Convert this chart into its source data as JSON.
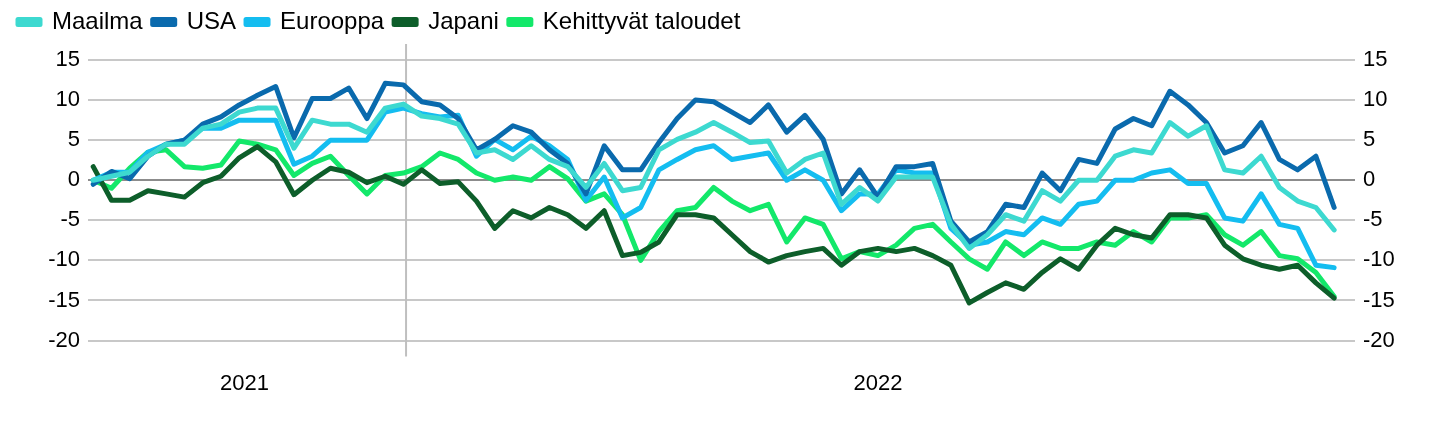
{
  "chart_data": {
    "type": "line",
    "x": [
      "2021-09-03",
      "2021-09-10",
      "2021-09-17",
      "2021-09-24",
      "2021-10-01",
      "2021-10-08",
      "2021-10-15",
      "2021-10-22",
      "2021-10-29",
      "2021-11-05",
      "2021-11-12",
      "2021-11-19",
      "2021-11-26",
      "2021-12-03",
      "2021-12-10",
      "2021-12-17",
      "2021-12-24",
      "2021-12-31",
      "2022-01-07",
      "2022-01-14",
      "2022-01-21",
      "2022-01-28",
      "2022-02-04",
      "2022-02-11",
      "2022-02-18",
      "2022-02-25",
      "2022-03-04",
      "2022-03-11",
      "2022-03-18",
      "2022-03-25",
      "2022-04-01",
      "2022-04-08",
      "2022-04-15",
      "2022-04-22",
      "2022-04-29",
      "2022-05-06",
      "2022-05-13",
      "2022-05-20",
      "2022-05-27",
      "2022-06-03",
      "2022-06-10",
      "2022-06-17",
      "2022-06-24",
      "2022-07-01",
      "2022-07-08",
      "2022-07-15",
      "2022-07-22",
      "2022-07-29",
      "2022-08-05",
      "2022-08-12",
      "2022-08-19",
      "2022-08-26",
      "2022-09-02",
      "2022-09-09",
      "2022-09-16",
      "2022-09-23",
      "2022-09-30",
      "2022-10-07",
      "2022-10-14",
      "2022-10-21",
      "2022-10-28",
      "2022-11-04",
      "2022-11-11",
      "2022-11-18",
      "2022-11-25",
      "2022-12-02",
      "2022-12-09",
      "2022-12-16",
      "2022-12-23"
    ],
    "series": [
      {
        "name": "Maailma",
        "color": "#3dd9d0",
        "values": [
          0,
          0.5,
          1,
          3,
          4.5,
          4.5,
          6.5,
          7,
          8.5,
          9,
          9,
          4,
          7.5,
          7,
          7,
          6,
          9,
          9.5,
          8,
          7.7,
          7,
          3.4,
          3.8,
          2.6,
          4.3,
          2.6,
          1.7,
          -0.9,
          2.1,
          -1.3,
          -0.9,
          3.8,
          5.1,
          6,
          7.2,
          6,
          4.7,
          4.9,
          0.9,
          2.6,
          3.4,
          -3,
          -0.9,
          -2.6,
          0.4,
          0.4,
          0.4,
          -5.5,
          -8.5,
          -6.8,
          -4.3,
          -5.1,
          -1.3,
          -2.6,
          0,
          0,
          3,
          3.8,
          3.4,
          7.2,
          5.5,
          6.8,
          1.3,
          0.9,
          3,
          -0.9,
          -2.6,
          -3.4,
          -6.2
        ]
      },
      {
        "name": "USA",
        "color": "#0a6aad",
        "values": [
          -0.5,
          1.1,
          0.2,
          3,
          4.5,
          5,
          7,
          7.9,
          9.4,
          10.6,
          11.7,
          5.3,
          10.2,
          10.2,
          11.5,
          7.7,
          12.1,
          11.9,
          9.8,
          9.4,
          7.7,
          3.8,
          5.1,
          6.8,
          6,
          3.8,
          2.1,
          -1.7,
          4.3,
          1.3,
          1.3,
          4.7,
          7.7,
          10,
          9.8,
          8.5,
          7.2,
          9.4,
          6,
          8.1,
          5.1,
          -1.7,
          1.3,
          -2.1,
          1.7,
          1.7,
          2.1,
          -5.1,
          -7.7,
          -6.4,
          -3,
          -3.4,
          0.9,
          -1.3,
          2.6,
          2.1,
          6.4,
          7.7,
          6.8,
          11.1,
          9.4,
          7.2,
          3.4,
          4.3,
          7.2,
          2.6,
          1.3,
          3,
          -3.4
        ]
      },
      {
        "name": "Eurooppa",
        "color": "#14bdf0",
        "values": [
          0,
          1,
          1,
          3.5,
          4.5,
          5,
          6.5,
          6.5,
          7.5,
          7.5,
          7.5,
          2,
          3,
          5,
          5,
          5,
          8.5,
          9,
          8.3,
          7.9,
          8.1,
          3,
          5.1,
          3.8,
          5.5,
          4.3,
          2.6,
          -2.5,
          0.4,
          -4.7,
          -3.4,
          1.3,
          2.6,
          3.8,
          4.3,
          2.6,
          3,
          3.4,
          0,
          1.3,
          0,
          -3.8,
          -1.7,
          -1.7,
          1.3,
          0.9,
          0.9,
          -6,
          -8.1,
          -7.7,
          -6.4,
          -6.8,
          -4.7,
          -5.5,
          -3,
          -2.6,
          0,
          0,
          0.9,
          1.3,
          -0.4,
          -0.4,
          -4.7,
          -5.1,
          -1.7,
          -5.5,
          -6,
          -10.6,
          -10.9
        ]
      },
      {
        "name": "Japani",
        "color": "#0d5e2a",
        "values": [
          1.7,
          -2.5,
          -2.5,
          -1.3,
          -1.7,
          -2.1,
          -0.3,
          0.5,
          2.8,
          4.2,
          2.3,
          -1.8,
          0,
          1.5,
          1,
          -0.3,
          0.5,
          -0.5,
          1.3,
          -0.4,
          -0.2,
          -2.6,
          -6,
          -3.8,
          -4.7,
          -3.4,
          -4.3,
          -6,
          -3.8,
          -9.4,
          -9,
          -7.7,
          -4.3,
          -4.3,
          -4.7,
          -6.8,
          -8.9,
          -10.2,
          -9.4,
          -8.9,
          -8.5,
          -10.6,
          -8.9,
          -8.5,
          -8.9,
          -8.5,
          -9.4,
          -10.6,
          -15.3,
          -14,
          -12.8,
          -13.6,
          -11.5,
          -9.8,
          -11.1,
          -8.1,
          -6,
          -6.8,
          -7.2,
          -4.3,
          -4.3,
          -4.7,
          -8.1,
          -9.8,
          -10.6,
          -11.1,
          -10.6,
          -12.8,
          -14.7
        ]
      },
      {
        "name": "Kehittyvät taloudet",
        "color": "#13e86a",
        "values": [
          0,
          -1,
          1.5,
          3.5,
          3.8,
          1.7,
          1.5,
          1.9,
          4.9,
          4.5,
          3.8,
          0.6,
          2.1,
          3,
          0.6,
          -1.7,
          0.6,
          0.9,
          1.7,
          3.4,
          2.6,
          0.9,
          0,
          0.4,
          0,
          1.7,
          0.2,
          -2.6,
          -1.7,
          -4.3,
          -10,
          -6.4,
          -3.8,
          -3.4,
          -0.9,
          -2.6,
          -3.8,
          -3,
          -7.7,
          -4.7,
          -5.5,
          -9.8,
          -8.9,
          -9.4,
          -8.1,
          -6,
          -5.5,
          -7.7,
          -9.8,
          -11.1,
          -7.7,
          -9.4,
          -7.7,
          -8.5,
          -8.5,
          -7.7,
          -8.1,
          -6.4,
          -7.7,
          -4.7,
          -4.7,
          -4.3,
          -6.8,
          -8.1,
          -6.4,
          -9.4,
          -9.8,
          -11.5,
          -14.5
        ]
      }
    ],
    "xlim": [
      "2021-09-01",
      "2022-12-31"
    ],
    "xticks": [
      {
        "value": "2021-10-31",
        "label": "2021"
      },
      {
        "value": "2022-07-01",
        "label": "2022"
      }
    ],
    "ylim": [
      -22,
      17
    ],
    "yticks": [
      -20,
      -15,
      -10,
      -5,
      0,
      5,
      10,
      15
    ],
    "y2lim": [
      -22,
      17
    ],
    "y2ticks": [
      -20,
      -15,
      -10,
      -5,
      0,
      5,
      10,
      15
    ],
    "ref_lines": [
      {
        "axis": "x",
        "value": "2022-01-01",
        "color": "#bfbfbf"
      }
    ],
    "grid": "y",
    "legend": "top left",
    "marker": "none",
    "line_style": "solid"
  }
}
